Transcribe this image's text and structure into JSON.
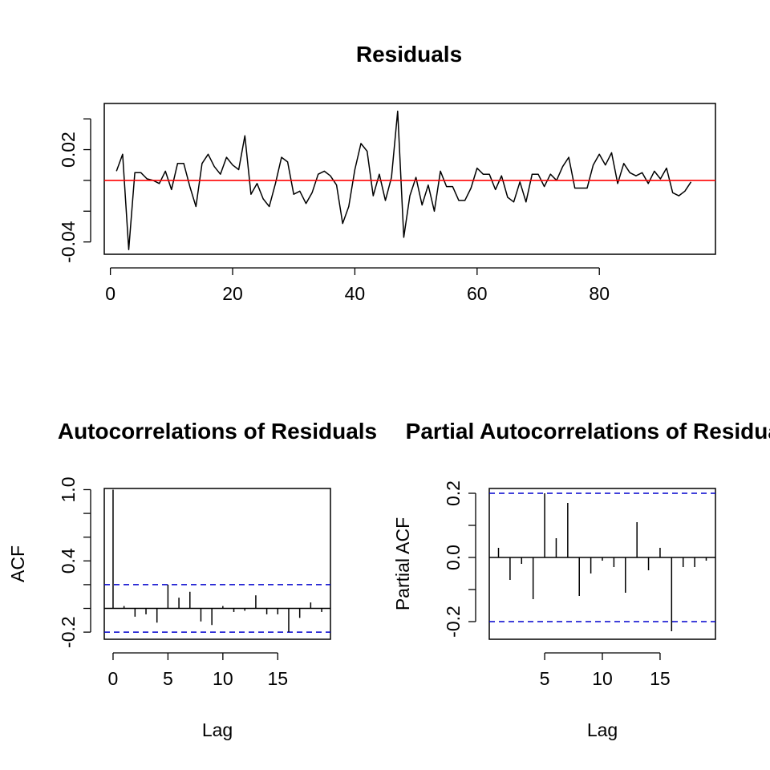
{
  "chart_data": [
    {
      "type": "line",
      "title": "Residuals",
      "xlabel": "",
      "ylabel": "",
      "xlim": [
        -1,
        99
      ],
      "ylim": [
        -0.048,
        0.05
      ],
      "x_ticks": [
        0,
        20,
        40,
        60,
        80
      ],
      "x_tick_labels": [
        "0",
        "20",
        "40",
        "60",
        "80"
      ],
      "y_ticks": [
        -0.04,
        -0.02,
        0.0,
        0.02,
        0.04
      ],
      "y_tick_labels": [
        "-0.04",
        "",
        "",
        "0.02",
        ""
      ],
      "reference_line": {
        "y": 0,
        "color": "#ff0000"
      },
      "line_color": "#000000",
      "series": [
        {
          "x": [
            1,
            2,
            3,
            4,
            5,
            6,
            7,
            8,
            9,
            10,
            11,
            12,
            13,
            14,
            15,
            16,
            17,
            18,
            19,
            20,
            21,
            22,
            23,
            24,
            25,
            26,
            27,
            28,
            29,
            30,
            31,
            32,
            33,
            34,
            35,
            36,
            37,
            38,
            39,
            40,
            41,
            42,
            43,
            44,
            45,
            46,
            47,
            48,
            49,
            50,
            51,
            52,
            53,
            54,
            55,
            56,
            57,
            58,
            59,
            60,
            61,
            62,
            63,
            64,
            65,
            66,
            67,
            68,
            69,
            70,
            71,
            72,
            73,
            74,
            75,
            76,
            77,
            78,
            79,
            80,
            81,
            82,
            83,
            84,
            85,
            86,
            87,
            88,
            89,
            90,
            91,
            92,
            93,
            94,
            95
          ],
          "values": [
            0.006,
            0.017,
            -0.045,
            0.005,
            0.005,
            0.001,
            0.0,
            -0.002,
            0.006,
            -0.006,
            0.011,
            0.011,
            -0.004,
            -0.017,
            0.011,
            0.017,
            0.009,
            0.004,
            0.015,
            0.01,
            0.007,
            0.029,
            -0.009,
            -0.002,
            -0.012,
            -0.017,
            -0.002,
            0.015,
            0.012,
            -0.009,
            -0.007,
            -0.015,
            -0.008,
            0.004,
            0.006,
            0.003,
            -0.003,
            -0.028,
            -0.017,
            0.007,
            0.024,
            0.019,
            -0.01,
            0.004,
            -0.013,
            0.002,
            0.045,
            -0.037,
            -0.01,
            0.002,
            -0.016,
            -0.003,
            -0.02,
            0.006,
            -0.004,
            -0.004,
            -0.013,
            -0.013,
            -0.005,
            0.008,
            0.004,
            0.004,
            -0.006,
            0.003,
            -0.011,
            -0.014,
            -0.001,
            -0.014,
            0.004,
            0.004,
            -0.004,
            0.004,
            0.0,
            0.009,
            0.015,
            -0.005,
            -0.005,
            -0.005,
            0.01,
            0.017,
            0.01,
            0.018,
            -0.002,
            0.011,
            0.005,
            0.003,
            0.005,
            -0.002,
            0.006,
            0.001,
            0.008,
            -0.008,
            -0.01,
            -0.007,
            -0.001
          ]
        }
      ]
    },
    {
      "type": "bar",
      "title": "Autocorrelations of Residuals",
      "xlabel": "Lag",
      "ylabel": "ACF",
      "xlim": [
        -0.8,
        19.8
      ],
      "ylim": [
        -0.26,
        1.01
      ],
      "x_ticks": [
        0,
        5,
        10,
        15
      ],
      "x_tick_labels": [
        "0",
        "5",
        "10",
        "15"
      ],
      "y_ticks": [
        -0.2,
        0.0,
        0.2,
        0.4,
        0.6,
        0.8,
        1.0
      ],
      "y_tick_labels": [
        "-0.2",
        "",
        "",
        "0.4",
        "",
        "",
        "1.0"
      ],
      "confidence_bound": 0.2,
      "confidence_color": "#0000cd",
      "lags": [
        0,
        1,
        2,
        3,
        4,
        5,
        6,
        7,
        8,
        9,
        10,
        11,
        12,
        13,
        14,
        15,
        16,
        17,
        18,
        19
      ],
      "values": [
        1.0,
        0.02,
        -0.07,
        -0.05,
        -0.12,
        0.2,
        0.09,
        0.14,
        -0.11,
        -0.14,
        0.02,
        -0.03,
        -0.02,
        0.11,
        -0.05,
        -0.05,
        -0.2,
        -0.08,
        0.05,
        -0.03
      ]
    },
    {
      "type": "bar",
      "title": "Partial Autocorrelations of Residuals",
      "xlabel": "Lag",
      "ylabel": "Partial ACF",
      "xlim": [
        0.2,
        19.8
      ],
      "ylim": [
        -0.255,
        0.215
      ],
      "x_ticks": [
        5,
        10,
        15
      ],
      "x_tick_labels": [
        "5",
        "10",
        "15"
      ],
      "y_ticks": [
        -0.2,
        -0.1,
        0.0,
        0.1,
        0.2
      ],
      "y_tick_labels": [
        "-0.2",
        "",
        "0.0",
        "",
        "0.2"
      ],
      "confidence_bound": 0.2,
      "confidence_color": "#0000cd",
      "lags": [
        1,
        2,
        3,
        4,
        5,
        6,
        7,
        8,
        9,
        10,
        11,
        12,
        13,
        14,
        15,
        16,
        17,
        18,
        19
      ],
      "values": [
        0.03,
        -0.07,
        -0.02,
        -0.13,
        0.2,
        0.06,
        0.17,
        -0.12,
        -0.05,
        -0.01,
        -0.03,
        -0.11,
        0.11,
        -0.04,
        0.03,
        -0.23,
        -0.03,
        -0.03,
        -0.01
      ]
    }
  ]
}
